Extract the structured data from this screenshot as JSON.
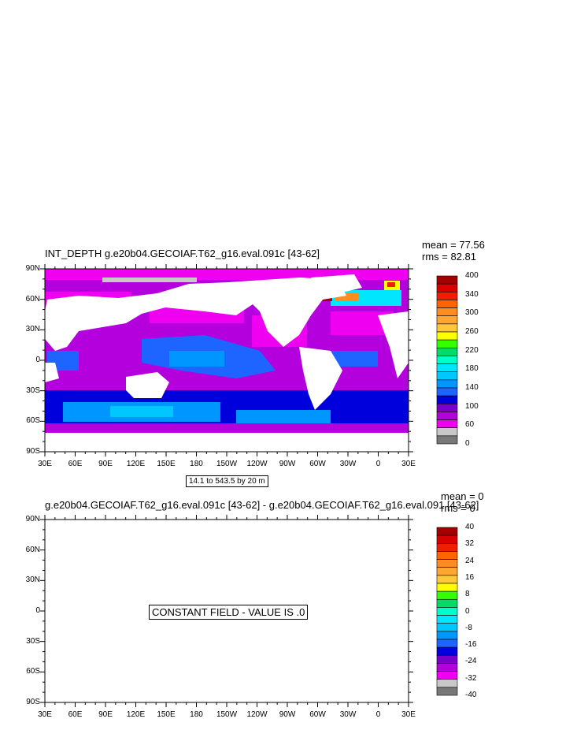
{
  "panels": [
    {
      "title": "INT_DEPTH g.e20b04.GECOIAF.T62_g16.eval.091c [43-62]",
      "mean": "mean = 77.56",
      "rms": "rms = 82.81",
      "info": "14.1 to 543.5 by 20 m",
      "colorbar_labels": [
        "400",
        "340",
        "300",
        "260",
        "220",
        "180",
        "140",
        "100",
        "60",
        "0"
      ]
    },
    {
      "title": "g.e20b04.GECOIAF.T62_g16.eval.091c [43-62] - g.e20b04.GECOIAF.T62_g16.eval.091 [43-62]",
      "mean": "mean = 0",
      "rms": "rms = 0",
      "constant_text": "CONSTANT FIELD - VALUE IS .0",
      "colorbar_labels": [
        "40",
        "32",
        "24",
        "16",
        "8",
        "0",
        "-8",
        "-16",
        "-24",
        "-32",
        "-40"
      ]
    }
  ],
  "axes": {
    "y_labels": [
      "90N",
      "60N",
      "30N",
      "0",
      "30S",
      "60S",
      "90S"
    ],
    "x_labels": [
      "30E",
      "60E",
      "90E",
      "120E",
      "150E",
      "180",
      "150W",
      "120W",
      "90W",
      "60W",
      "30W",
      "0",
      "30E"
    ]
  },
  "colors": {
    "colorbar_top": [
      "#a50000",
      "#d80000",
      "#f01e00",
      "#ff6400",
      "#ff8c1e",
      "#ffa532",
      "#ffc83c",
      "#ffff00",
      "#32ff00",
      "#00dc64",
      "#00ffc8",
      "#00e6ff",
      "#00c8ff",
      "#0096ff",
      "#1e64ff",
      "#0000dc",
      "#7800c8",
      "#b400dc",
      "#f000f0",
      "#c8c8c8",
      "#787878"
    ],
    "colorbar_bottom": [
      "#a50000",
      "#d80000",
      "#f01e00",
      "#ff6400",
      "#ff8c1e",
      "#ffa532",
      "#ffc83c",
      "#ffff00",
      "#32ff00",
      "#00dc64",
      "#00ffc8",
      "#00e6ff",
      "#00c8ff",
      "#0096ff",
      "#1e64ff",
      "#0000dc",
      "#7800c8",
      "#b400dc",
      "#f000f0",
      "#c8c8c8",
      "#787878"
    ]
  },
  "chart_data": [
    {
      "type": "heatmap",
      "title": "INT_DEPTH g.e20b04.GECOIAF.T62_g16.eval.091c [43-62]",
      "stats": {
        "mean": 77.56,
        "rms": 82.81
      },
      "contour_info": "14.1 to 543.5 by 20 m",
      "colorbar_ticks": [
        400,
        340,
        300,
        260,
        220,
        180,
        140,
        100,
        60,
        0
      ],
      "xlim": [
        "30E",
        "30E"
      ],
      "ylim": [
        "90S",
        "90N"
      ],
      "grid": false
    },
    {
      "type": "heatmap",
      "title": "g.e20b04.GECOIAF.T62_g16.eval.091c [43-62] - g.e20b04.GECOIAF.T62_g16.eval.091 [43-62]",
      "stats": {
        "mean": 0,
        "rms": 0
      },
      "annotation": "CONSTANT FIELD - VALUE IS .0",
      "colorbar_ticks": [
        40,
        32,
        24,
        16,
        8,
        0,
        -8,
        -16,
        -24,
        -32,
        -40
      ],
      "xlim": [
        "30E",
        "30E"
      ],
      "ylim": [
        "90S",
        "90N"
      ],
      "grid": false
    }
  ]
}
